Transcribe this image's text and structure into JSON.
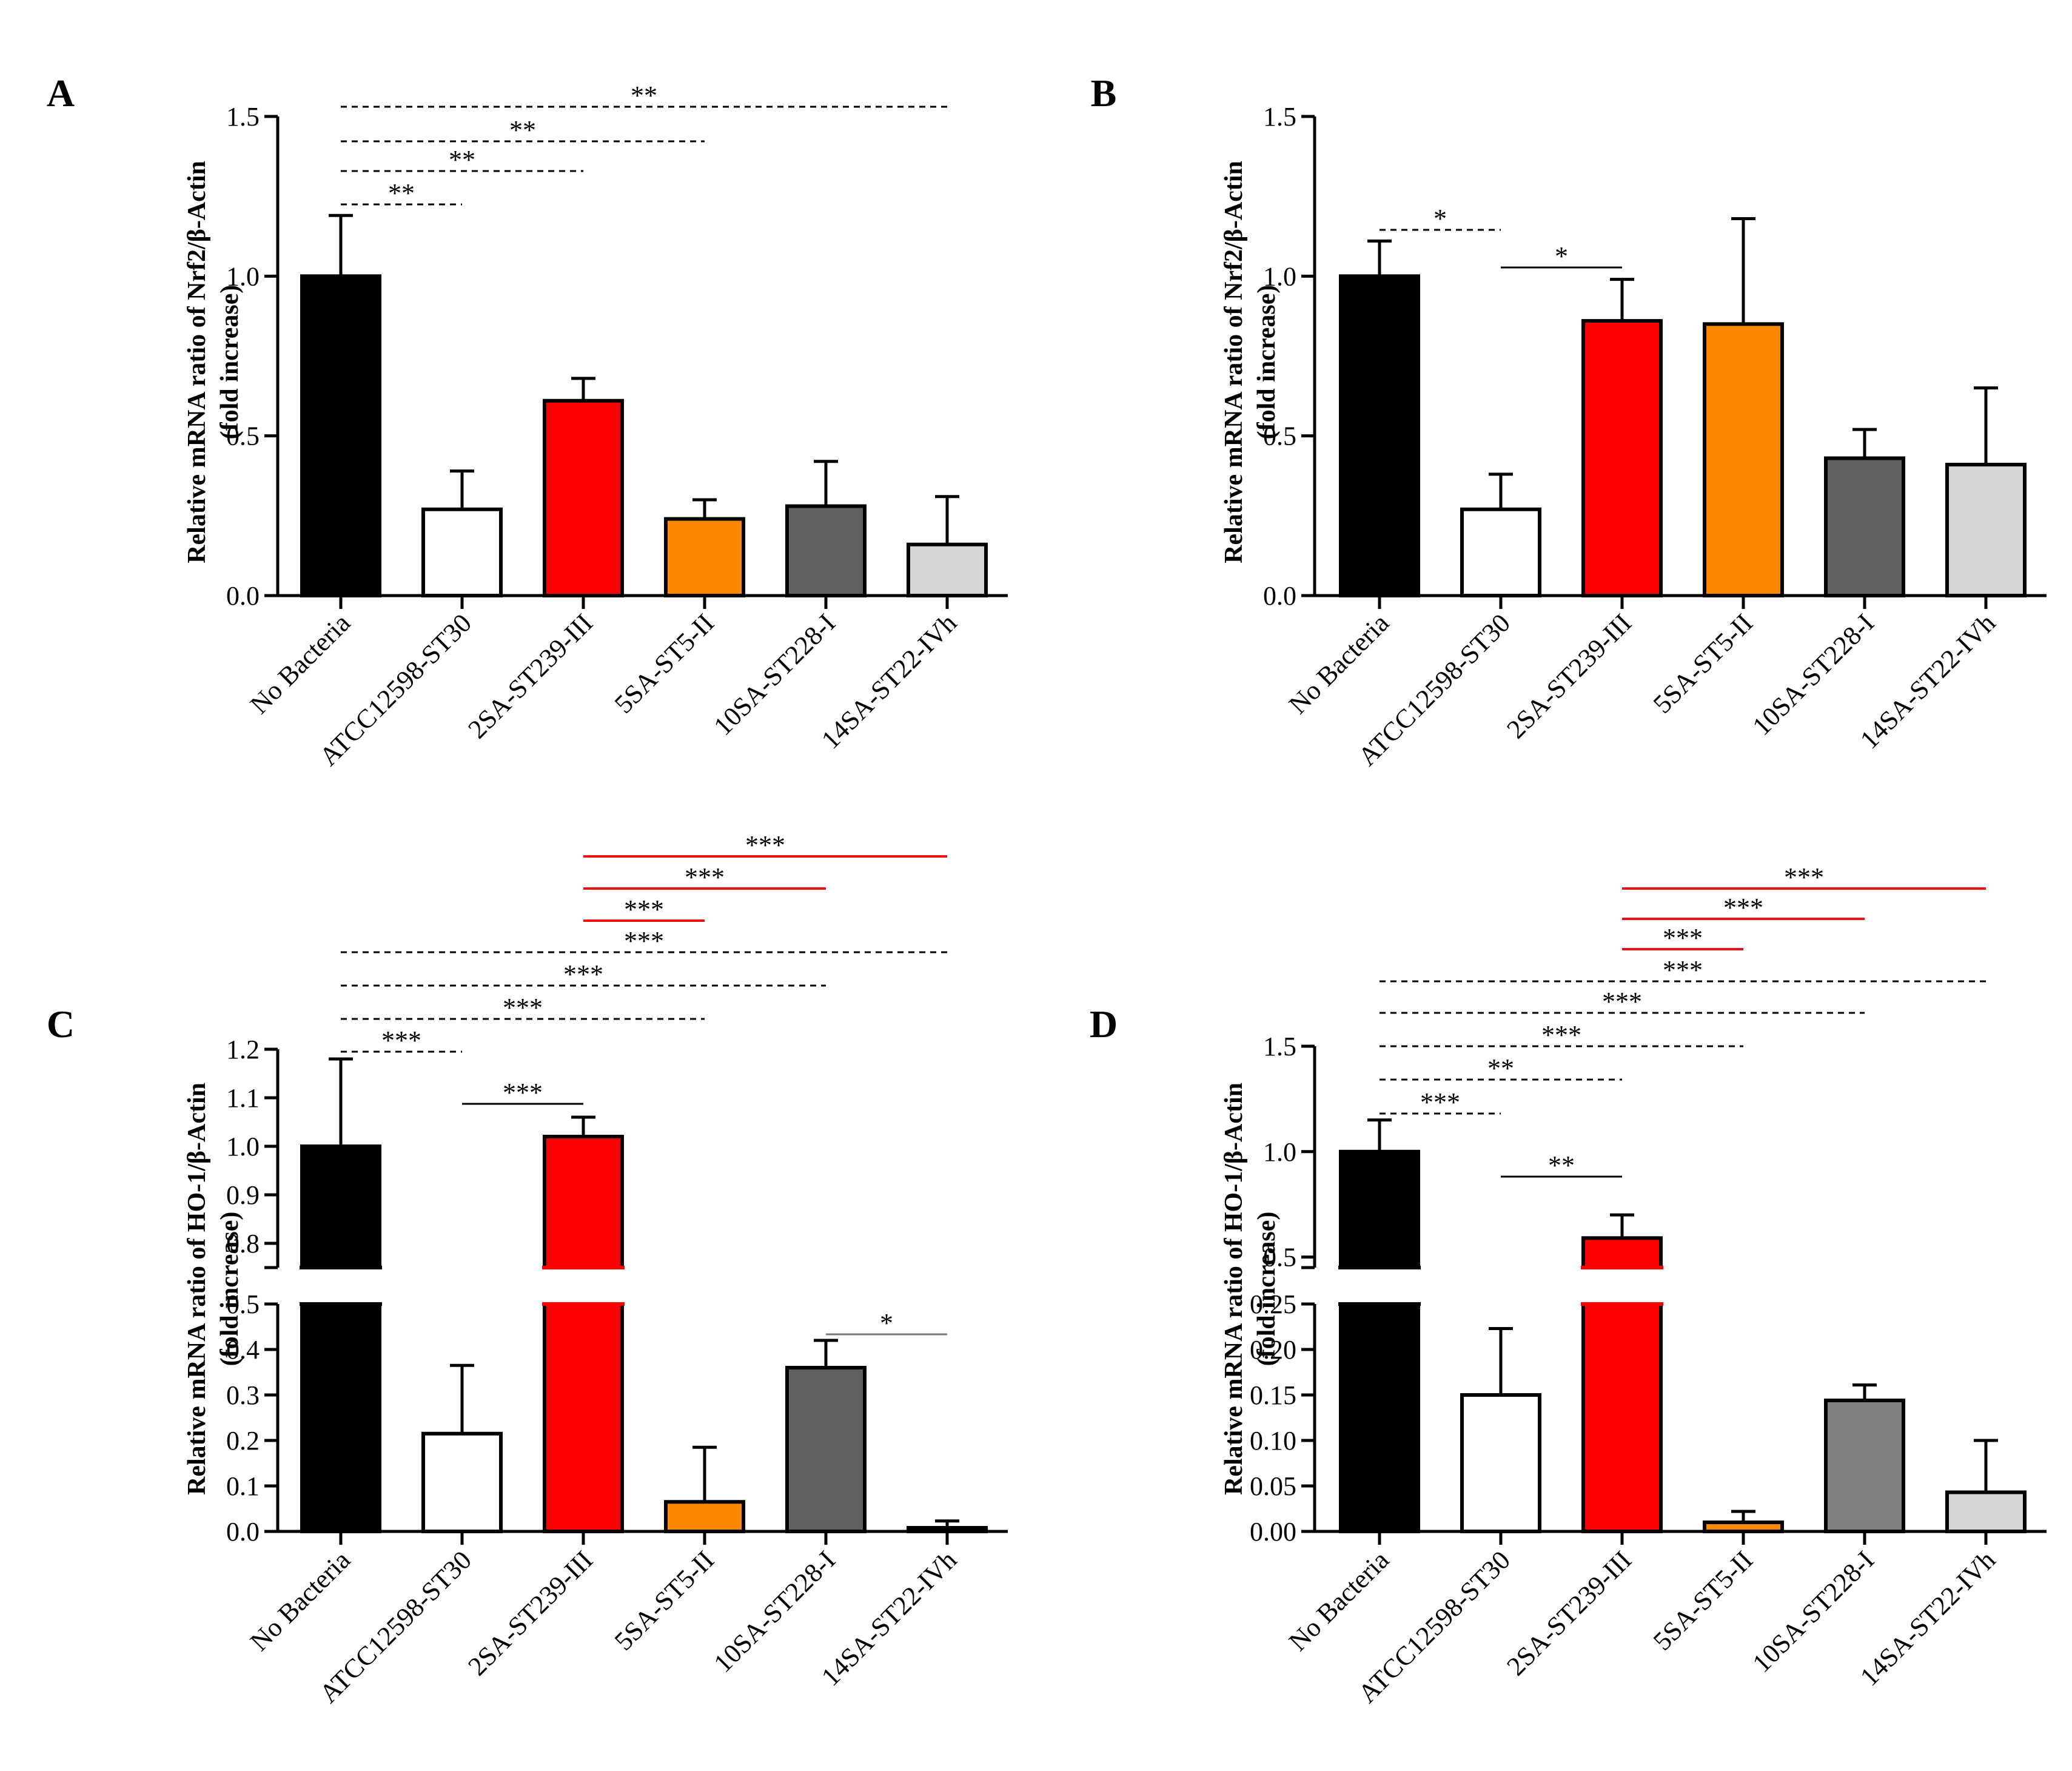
{
  "chart_data": [
    {
      "panel": "A",
      "type": "bar",
      "categories": [
        "No Bacteria",
        "ATCC12598-ST30",
        "2SA-ST239-III",
        "5SA-ST5-II",
        "10SA-ST228-I",
        "14SA-ST22-IVh"
      ],
      "values": [
        1.0,
        0.27,
        0.61,
        0.24,
        0.28,
        0.16
      ],
      "errors": [
        0.19,
        0.12,
        0.07,
        0.06,
        0.14,
        0.15
      ],
      "ylabel": [
        "Relative mRNA ratio of Nrf2/β-Actin",
        "(fold increase)"
      ],
      "ylim": [
        0,
        1.5
      ],
      "yticks": [
        "0.0",
        "0.5",
        "1.0",
        "1.5"
      ],
      "significance": [
        {
          "from": 0,
          "to": 1,
          "label": "**",
          "style": "dashed"
        },
        {
          "from": 0,
          "to": 2,
          "label": "**",
          "style": "dashed"
        },
        {
          "from": 0,
          "to": 3,
          "label": "**",
          "style": "dashed"
        },
        {
          "from": 0,
          "to": 5,
          "label": "**",
          "style": "dashed"
        }
      ]
    },
    {
      "panel": "B",
      "type": "bar",
      "categories": [
        "No Bacteria",
        "ATCC12598-ST30",
        "2SA-ST239-III",
        "5SA-ST5-II",
        "10SA-ST228-I",
        "14SA-ST22-IVh"
      ],
      "values": [
        1.0,
        0.27,
        0.86,
        0.85,
        0.43,
        0.41
      ],
      "errors": [
        0.11,
        0.11,
        0.13,
        0.33,
        0.09,
        0.24
      ],
      "ylabel": [
        "Relative mRNA ratio of Nrf2/β-Actin",
        "(fold increase)"
      ],
      "ylim": [
        0,
        1.5
      ],
      "yticks": [
        "0.0",
        "0.5",
        "1.0",
        "1.5"
      ],
      "significance": [
        {
          "from": 0,
          "to": 1,
          "label": "*",
          "style": "dashed"
        },
        {
          "from": 1,
          "to": 2,
          "label": "*",
          "style": "solid"
        }
      ]
    },
    {
      "panel": "C",
      "type": "bar",
      "broken_axis": true,
      "categories": [
        "No Bacteria",
        "ATCC12598-ST30",
        "2SA-ST239-III",
        "5SA-ST5-II",
        "10SA-ST228-I",
        "14SA-ST22-IVh"
      ],
      "values": [
        1.0,
        0.215,
        1.02,
        0.065,
        0.36,
        0.008
      ],
      "errors": [
        0.18,
        0.15,
        0.04,
        0.12,
        0.06,
        0.015
      ],
      "ylabel": [
        "Relative mRNA ratio of HO-1/β-Actin",
        "(fold increase)"
      ],
      "ylim_lower": [
        0,
        0.5
      ],
      "ylim_upper": [
        0.75,
        1.2
      ],
      "yticks_lower": [
        "0.0",
        "0.1",
        "0.2",
        "0.3",
        "0.4",
        "0.5"
      ],
      "yticks_upper": [
        "0.8",
        "0.9",
        "1.0",
        "1.1",
        "1.2"
      ],
      "significance": [
        {
          "from": 0,
          "to": 1,
          "label": "***",
          "style": "dashed"
        },
        {
          "from": 0,
          "to": 3,
          "label": "***",
          "style": "dashed"
        },
        {
          "from": 0,
          "to": 4,
          "label": "***",
          "style": "dashed"
        },
        {
          "from": 0,
          "to": 5,
          "label": "***",
          "style": "dashed"
        },
        {
          "from": 2,
          "to": 3,
          "label": "***",
          "style": "red"
        },
        {
          "from": 2,
          "to": 4,
          "label": "***",
          "style": "red"
        },
        {
          "from": 2,
          "to": 5,
          "label": "***",
          "style": "red"
        },
        {
          "from": 1,
          "to": 2,
          "label": "***",
          "style": "solid"
        },
        {
          "from": 4,
          "to": 5,
          "label": "*",
          "style": "gray"
        }
      ]
    },
    {
      "panel": "D",
      "type": "bar",
      "broken_axis": true,
      "categories": [
        "No Bacteria",
        "ATCC12598-ST30",
        "2SA-ST239-III",
        "5SA-ST5-II",
        "10SA-ST228-I",
        "14SA-ST22-IVh"
      ],
      "values": [
        1.0,
        0.15,
        0.59,
        0.01,
        0.144,
        0.043
      ],
      "errors": [
        0.15,
        0.073,
        0.11,
        0.012,
        0.017,
        0.057
      ],
      "ylabel": [
        "Relative mRNA ratio of HO-1/β-Actin",
        "(fold increase)"
      ],
      "ylim_lower": [
        0,
        0.25
      ],
      "ylim_upper": [
        0.5,
        1.5
      ],
      "yticks_lower": [
        "0.00",
        "0.05",
        "0.10",
        "0.15",
        "0.20",
        "0.25"
      ],
      "yticks_upper": [
        "0.5",
        "1.0",
        "1.5"
      ],
      "significance": [
        {
          "from": 0,
          "to": 1,
          "label": "***",
          "style": "dashed"
        },
        {
          "from": 0,
          "to": 2,
          "label": "**",
          "style": "dashed"
        },
        {
          "from": 0,
          "to": 3,
          "label": "***",
          "style": "dashed"
        },
        {
          "from": 0,
          "to": 4,
          "label": "***",
          "style": "dashed"
        },
        {
          "from": 0,
          "to": 5,
          "label": "***",
          "style": "dashed"
        },
        {
          "from": 2,
          "to": 3,
          "label": "***",
          "style": "red"
        },
        {
          "from": 2,
          "to": 4,
          "label": "***",
          "style": "red"
        },
        {
          "from": 2,
          "to": 5,
          "label": "***",
          "style": "red"
        },
        {
          "from": 1,
          "to": 2,
          "label": "**",
          "style": "solid"
        }
      ]
    }
  ],
  "colors": {
    "bars": [
      "#000000",
      "#ffffff",
      "#ff0000",
      "#ff8800",
      "#606060",
      "#d6d6d6"
    ],
    "bars_D": [
      "#000000",
      "#ffffff",
      "#ff0000",
      "#ff8800",
      "#808080",
      "#d6d6d6"
    ],
    "red_bracket": "#ee1111",
    "gray_bracket": "#777777"
  }
}
